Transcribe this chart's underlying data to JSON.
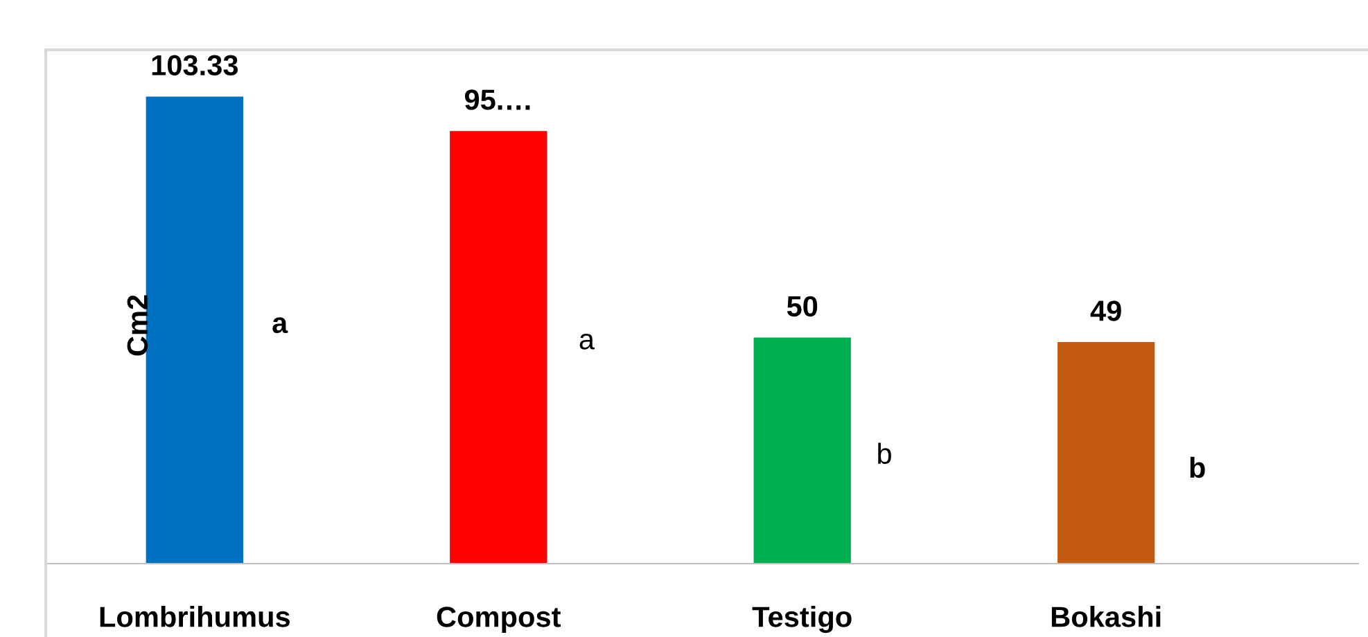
{
  "chart_data": {
    "type": "bar",
    "ylabel": "Cm2",
    "categories": [
      "Lombrihumus",
      "Compost",
      "Testigo",
      "Bokashi"
    ],
    "values": [
      103.33,
      95.7,
      50,
      49
    ],
    "colors": [
      "#0070c0",
      "#ff0000",
      "#00b050",
      "#c55a11"
    ],
    "value_labels": [
      "103.33",
      "95.…",
      "50",
      "49"
    ],
    "annotations": [
      "a",
      "a",
      "b",
      "b"
    ],
    "grid": false,
    "legend": false
  }
}
